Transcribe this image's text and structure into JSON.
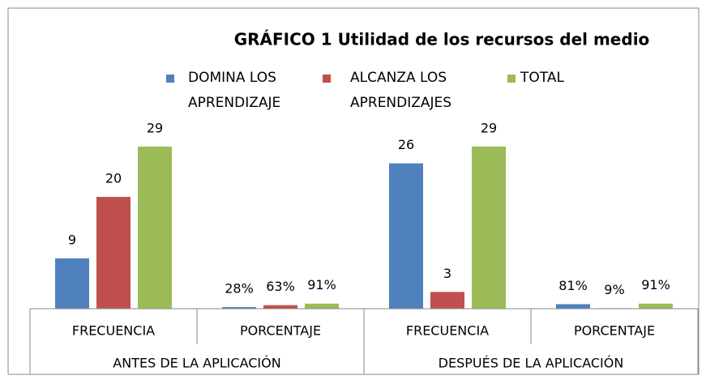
{
  "chart_data": {
    "type": "bar",
    "title": "GRÁFICO 1 Utilidad de los recursos del medio",
    "categories": [
      "FRECUENCIA",
      "PORCENTAJE",
      "FRECUENCIA",
      "PORCENTAJE"
    ],
    "category_groups": [
      "ANTES DE LA APLICACIÓN",
      "DESPUÉS DE LA APLICACIÓN"
    ],
    "series": [
      {
        "name": "DOMINA LOS APRENDIZAJE",
        "color": "#4f81bd",
        "values": [
          9,
          0.28,
          26,
          0.81
        ],
        "value_labels": [
          "9",
          "28%",
          "26",
          "81%"
        ]
      },
      {
        "name": "ALCANZA LOS APRENDIZAJES",
        "color": "#c0504d",
        "values": [
          20,
          0.63,
          3,
          0.09
        ],
        "value_labels": [
          "20",
          "63%",
          "3",
          "9%"
        ]
      },
      {
        "name": "TOTAL",
        "color": "#9bbb59",
        "values": [
          29,
          0.91,
          29,
          0.91
        ],
        "value_labels": [
          "29",
          "91%",
          "29",
          "91%"
        ]
      }
    ],
    "ylim": [
      0,
      30
    ],
    "legend": "top"
  }
}
